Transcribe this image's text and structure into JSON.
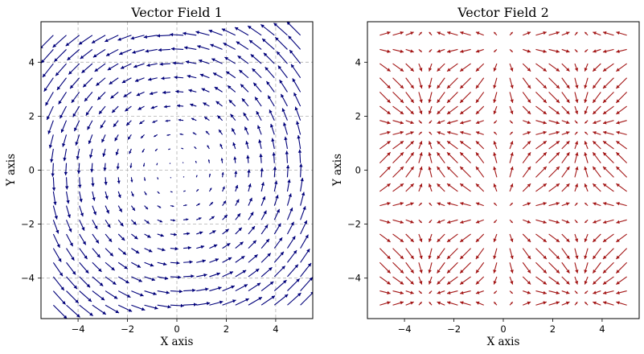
{
  "chart_data": [
    {
      "type": "quiver",
      "title": "Vector Field 1",
      "xlabel": "X axis",
      "ylabel": "Y axis",
      "xlim": [
        -5.5,
        5.5
      ],
      "ylim": [
        -5.5,
        5.5
      ],
      "xticks": [
        -4,
        -2,
        0,
        2,
        4
      ],
      "yticks": [
        -4,
        -2,
        0,
        2,
        4
      ],
      "tick_labels": [
        "−4",
        "−2",
        "0",
        "2",
        "4"
      ],
      "grid": true,
      "color": "#00007a",
      "field": {
        "u": "-y",
        "v": "x"
      },
      "grid_points": {
        "start": -5,
        "stop": 5,
        "n": 20
      }
    },
    {
      "type": "quiver",
      "title": "Vector Field 2",
      "xlabel": "X axis",
      "ylabel": "Y axis",
      "xlim": [
        -5.5,
        5.5
      ],
      "ylim": [
        -5.5,
        5.5
      ],
      "xticks": [
        -4,
        -2,
        0,
        2,
        4
      ],
      "yticks": [
        -4,
        -2,
        0,
        2,
        4
      ],
      "tick_labels": [
        "−4",
        "−2",
        "0",
        "2",
        "4"
      ],
      "grid": false,
      "color": "#a31515",
      "field": {
        "u": "sin(x)",
        "v": "cos(y)"
      },
      "grid_points": {
        "start": -5,
        "stop": 5,
        "n": 20
      }
    }
  ]
}
